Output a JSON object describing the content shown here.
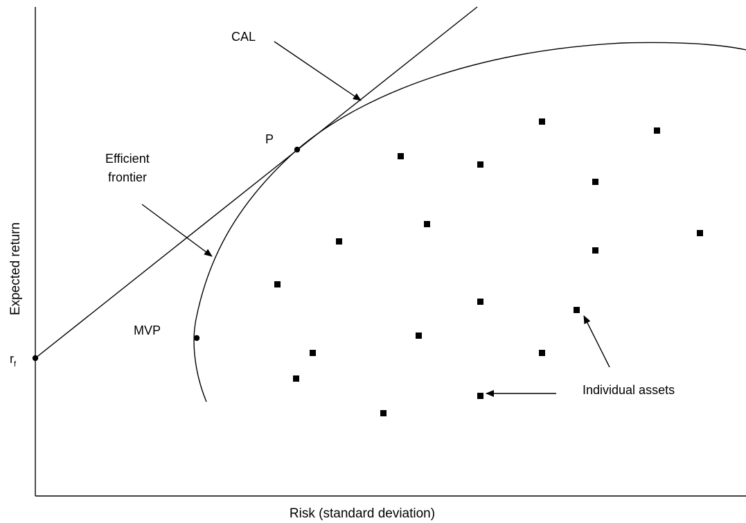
{
  "axes": {
    "x_label": "Risk (standard deviation)",
    "y_label": "Expected return"
  },
  "labels": {
    "cal": "CAL",
    "efficient_frontier_line1": "Efficient",
    "efficient_frontier_line2": "frontier",
    "p": "P",
    "mvp": "MVP",
    "rf_main": "r",
    "rf_sub": "f",
    "individual_assets": "Individual assets"
  },
  "colors": {
    "ink": "#000000",
    "background": "#ffffff"
  }
}
